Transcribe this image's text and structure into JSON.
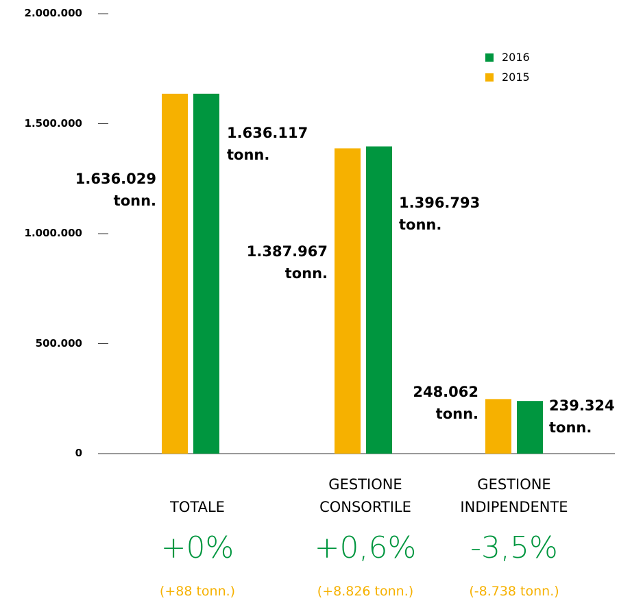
{
  "chart_data": {
    "type": "bar",
    "categories": [
      "TOTALE",
      "GESTIONE CONSORTILE",
      "GESTIONE INDIPENDENTE"
    ],
    "series": [
      {
        "name": "2015",
        "color": "#f6b100",
        "values": [
          1636029,
          1387967,
          248062
        ],
        "value_labels": [
          "1.636.029 tonn.",
          "1.387.967 tonn.",
          "248.062 tonn."
        ]
      },
      {
        "name": "2016",
        "color": "#00963f",
        "values": [
          1636117,
          1396793,
          239324
        ],
        "value_labels": [
          "1.636.117 tonn.",
          "1.396.793 tonn.",
          "239.324 tonn."
        ]
      }
    ],
    "ylim": [
      0,
      2000000
    ],
    "yticks": [
      0,
      {
        "value": 500000,
        "label": "500.000"
      },
      {
        "value": 1000000,
        "label": "1.000.000"
      },
      {
        "value": 1500000,
        "label": "1.500.000"
      },
      {
        "value": 2000000,
        "label": "2.000.000"
      }
    ],
    "changes": [
      {
        "percent": "+0%",
        "tonnes": "(+88 tonn.)"
      },
      {
        "percent": "+0,6%",
        "tonnes": "(+8.826 tonn.)"
      },
      {
        "percent": "-3,5%",
        "tonnes": "(-8.738 tonn.)"
      }
    ],
    "legend": "top-right"
  }
}
